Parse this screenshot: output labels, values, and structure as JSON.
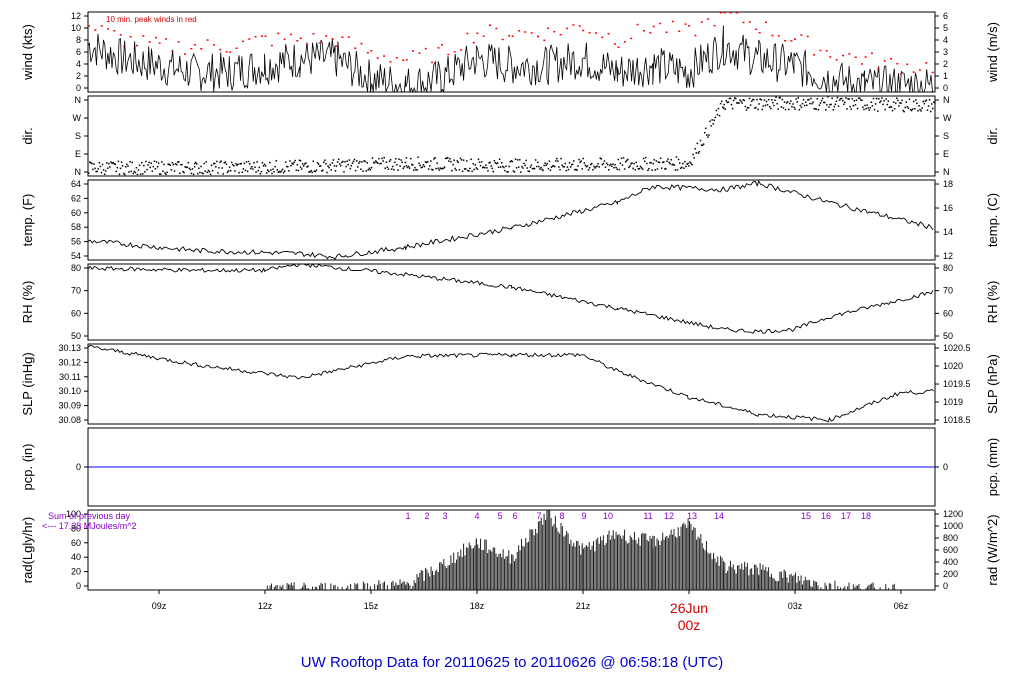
{
  "chart_data": {
    "type": "line",
    "title": "UW Rooftop Data for 20110625  to  20110626 @ 06:58:18  (UTC)",
    "x_axis": {
      "ticks": [
        "09z",
        "12z",
        "15z",
        "18z",
        "21z",
        "00z",
        "03z",
        "06z"
      ],
      "date_label": "26Jun",
      "date_tick": "00z"
    },
    "panels": [
      {
        "id": "wind",
        "left_label": "wind (kts)",
        "right_label": "wind (m/s)",
        "left_ticks": [
          "0",
          "2",
          "4",
          "6",
          "8",
          "10",
          "12"
        ],
        "right_ticks": [
          "0",
          "1",
          "2",
          "3",
          "4",
          "5",
          "6"
        ],
        "ylim": [
          0,
          12
        ],
        "annotation": "10 min. peak winds in red",
        "series": [
          {
            "x": [
              "06z",
              "07z",
              "08z",
              "09z",
              "10z",
              "11z",
              "12z",
              "13z",
              "14z",
              "15z",
              "16z",
              "17z",
              "18z",
              "19z",
              "20z",
              "21z",
              "22z",
              "23z",
              "00z",
              "01z",
              "02z",
              "03z",
              "04z",
              "05z",
              "06z",
              "07z"
            ],
            "values": [
              7,
              5,
              4,
              3,
              3,
              4,
              5,
              5,
              2,
              1,
              2,
              5,
              4,
              4,
              5,
              3,
              4,
              3,
              7,
              5,
              4,
              2,
              1,
              1,
              1,
              1
            ]
          },
          {
            "name": "10 min. peak winds",
            "color": "#ff0000",
            "values": [
              10,
              8,
              7,
              7,
              7,
              8,
              8,
              8,
              6,
              5,
              6,
              9,
              9,
              9,
              10,
              8,
              10,
              9,
              12,
              10,
              8,
              6,
              5,
              4,
              4,
              4
            ]
          }
        ]
      },
      {
        "id": "dir",
        "left_label": "dir.",
        "right_label": "dir.",
        "left_ticks": [
          "N",
          "E",
          "S",
          "W",
          "N"
        ],
        "right_ticks": [
          "N",
          "E",
          "S",
          "W",
          "N"
        ],
        "ylim": [
          0,
          360
        ],
        "series": [
          {
            "x": [
              "06z",
              "09z",
              "12z",
              "15z",
              "18z",
              "21z",
              "23z",
              "00z",
              "03z",
              "06z"
            ],
            "values": [
              40,
              40,
              45,
              60,
              50,
              55,
              60,
              330,
              330,
              320
            ]
          }
        ]
      },
      {
        "id": "temp",
        "left_label": "temp. (F)",
        "right_label": "temp. (C)",
        "left_ticks": [
          "54",
          "56",
          "58",
          "60",
          "62",
          "64"
        ],
        "right_ticks": [
          "12",
          "14",
          "16",
          "18"
        ],
        "ylim": [
          53,
          65.5
        ],
        "series": [
          {
            "x": [
              "06z",
              "09z",
              "12z",
              "13z",
              "15z",
              "18z",
              "21z",
              "22z",
              "00z",
              "01z",
              "03z",
              "06z",
              "07z"
            ],
            "values": [
              56,
              54.5,
              54,
              53.5,
              55,
              58,
              62,
              64.5,
              64,
              65,
              62,
              58,
              57
            ]
          }
        ]
      },
      {
        "id": "rh",
        "left_label": "RH (%)",
        "right_label": "RH (%)",
        "left_ticks": [
          "50",
          "60",
          "70",
          "80"
        ],
        "right_ticks": [
          "50",
          "60",
          "70",
          "80"
        ],
        "ylim": [
          47,
          83
        ],
        "series": [
          {
            "x": [
              "06z",
              "09z",
              "11z",
              "12z",
              "15z",
              "18z",
              "21z",
              "00z",
              "01z",
              "02z",
              "03z",
              "06z",
              "07z"
            ],
            "values": [
              81,
              80,
              80,
              83,
              78,
              72,
              62,
              52,
              51,
              52,
              58,
              70,
              75
            ]
          }
        ]
      },
      {
        "id": "slp",
        "left_label": "SLP (inHg)",
        "right_label": "SLP (hPa)",
        "left_ticks": [
          "30.08",
          "30.09",
          "30.10",
          "30.11",
          "30.12",
          "30.13"
        ],
        "right_ticks": [
          "1018.5",
          "1019",
          "1019.5",
          "1020",
          "1020.5"
        ],
        "ylim": [
          30.075,
          30.134
        ],
        "series": [
          {
            "x": [
              "06z",
              "07z",
              "09z",
              "12z",
              "15z",
              "18z",
              "20z",
              "21z",
              "23z",
              "01z",
              "03z",
              "05z",
              "07z"
            ],
            "values": [
              30.132,
              30.128,
              30.119,
              30.109,
              30.125,
              30.126,
              30.126,
              30.114,
              30.095,
              30.082,
              30.078,
              30.098,
              30.1
            ]
          }
        ]
      },
      {
        "id": "pcp",
        "left_label": "pcp. (in)",
        "right_label": "pcp. (mm)",
        "left_ticks": [
          "0"
        ],
        "right_ticks": [
          "0"
        ],
        "ylim": [
          -1,
          1
        ],
        "series": [
          {
            "color": "#0000ff",
            "values": [
              0
            ]
          }
        ]
      },
      {
        "id": "rad",
        "left_label": "rad(Lgly/hr)",
        "right_label": "rad (W/m^2)",
        "left_ticks": [
          "0",
          "20",
          "40",
          "60",
          "80",
          "100"
        ],
        "right_ticks": [
          "0",
          "200",
          "400",
          "600",
          "800",
          "1000",
          "1200"
        ],
        "ylim": [
          0,
          100
        ],
        "note_lines": [
          "Sum of previous day",
          "<--- 17.38 MJoules/m^2"
        ],
        "hour_labels": [
          "1",
          "2",
          "3",
          "4",
          "5",
          "6",
          "7",
          "8",
          "9",
          "10",
          "11",
          "12",
          "13",
          "14",
          "15",
          "16",
          "17",
          "18"
        ],
        "series": [
          {
            "x": [
              "11z",
              "12z",
              "13z",
              "15z",
              "16z",
              "17z",
              "18z",
              "19z",
              "20z",
              "21z",
              "22z",
              "23z",
              "00z",
              "01z",
              "02z",
              "03z",
              "04z",
              "05z"
            ],
            "values": [
              0,
              1,
              2,
              6,
              30,
              60,
              40,
              95,
              50,
              70,
              60,
              80,
              30,
              25,
              15,
              5,
              1,
              0
            ]
          }
        ]
      }
    ]
  }
}
